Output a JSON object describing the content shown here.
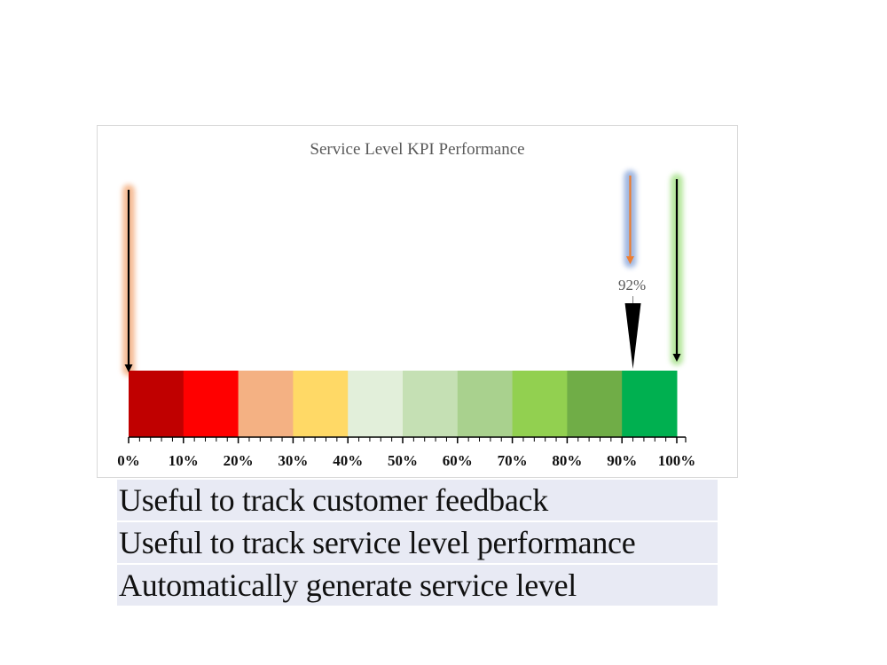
{
  "chart_data": {
    "type": "gauge-bar",
    "title": "Service Level KPI Performance",
    "xlabel": "",
    "ylabel": "",
    "xlim": [
      0,
      100
    ],
    "tick_labels": [
      "0%",
      "10%",
      "20%",
      "30%",
      "40%",
      "50%",
      "60%",
      "70%",
      "80%",
      "90%",
      "100%"
    ],
    "minor_ticks_per_band": 5,
    "bands": [
      {
        "from": 0,
        "to": 10,
        "color": "#c00000"
      },
      {
        "from": 10,
        "to": 20,
        "color": "#ff0000"
      },
      {
        "from": 20,
        "to": 30,
        "color": "#f4b183"
      },
      {
        "from": 30,
        "to": 40,
        "color": "#ffd966"
      },
      {
        "from": 40,
        "to": 50,
        "color": "#e2efda"
      },
      {
        "from": 50,
        "to": 60,
        "color": "#c5e0b4"
      },
      {
        "from": 60,
        "to": 70,
        "color": "#a9d18e"
      },
      {
        "from": 70,
        "to": 80,
        "color": "#92d050"
      },
      {
        "from": 80,
        "to": 90,
        "color": "#70ad47"
      },
      {
        "from": 90,
        "to": 100,
        "color": "#00b050"
      }
    ],
    "pointer": {
      "value": 92,
      "label": "92%",
      "color": "#000000"
    },
    "markers": [
      {
        "name": "min",
        "value": 0,
        "arrow_color": "#000000",
        "glow_color": "#f4b183"
      },
      {
        "name": "target",
        "value": 91.5,
        "arrow_color": "#ed7d31",
        "glow_color": "#8faadc"
      },
      {
        "name": "max",
        "value": 100,
        "arrow_color": "#000000",
        "glow_color": "#a9e28c"
      }
    ],
    "grid": false,
    "legend": "none"
  },
  "captions": [
    "Useful to track customer feedback",
    "Useful to track service level performance",
    "Automatically generate service level"
  ]
}
